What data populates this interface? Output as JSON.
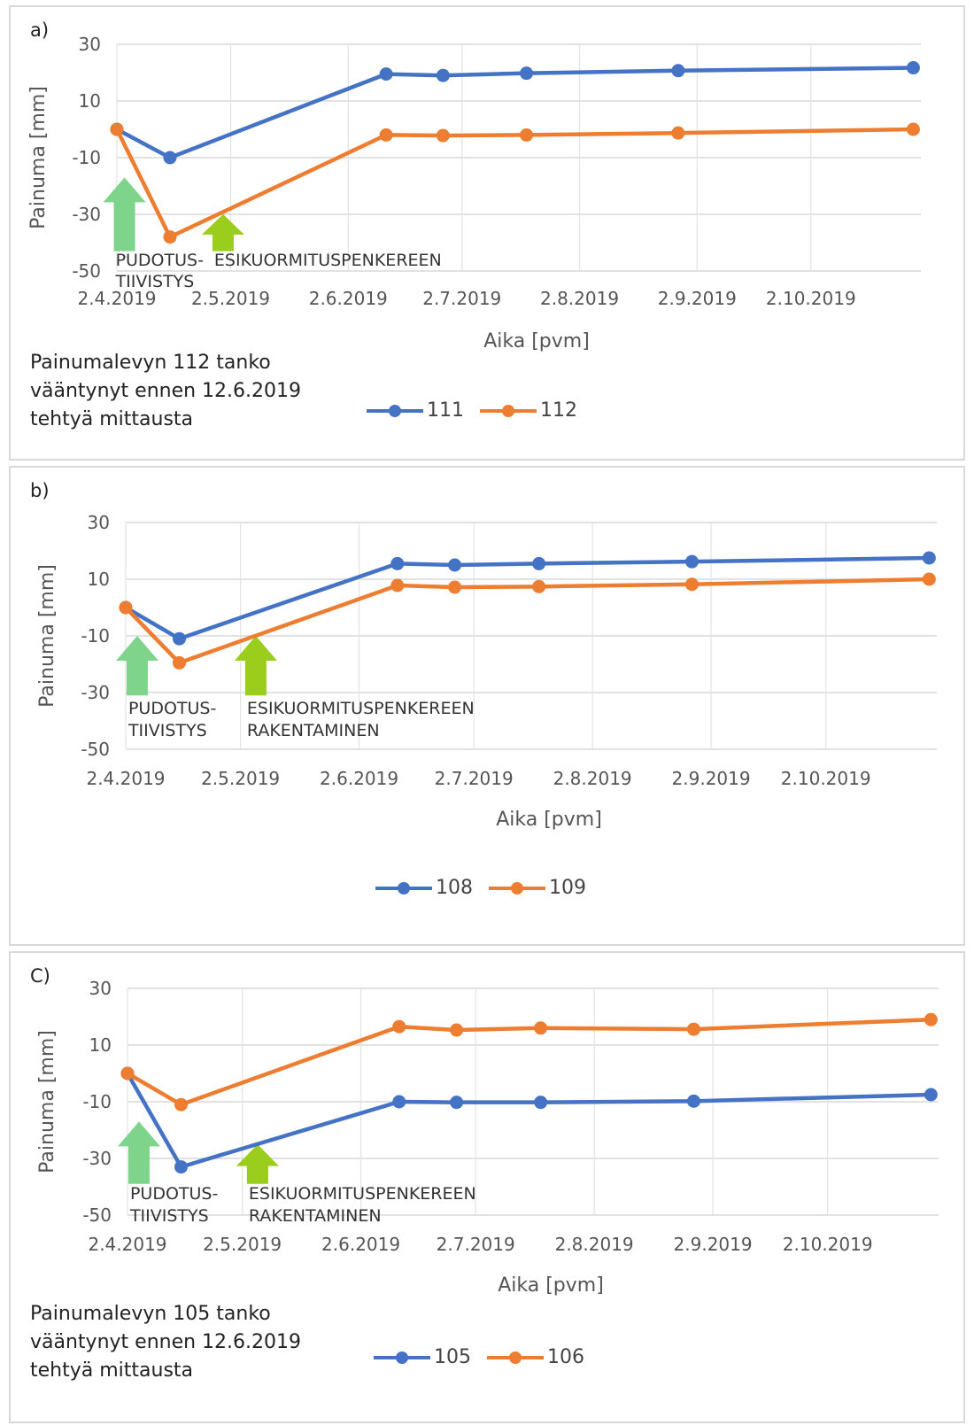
{
  "chart_data": [
    {
      "type": "line",
      "panel_label": "a)",
      "ylabel": "Painuma [mm]",
      "xlabel": "Aika [pvm]",
      "ylim": [
        -50,
        30
      ],
      "yticks": [
        30,
        10,
        -10,
        -30,
        -50
      ],
      "xlim": [
        "2019-04-02",
        "2019-10-31"
      ],
      "xticks": [
        "2.4.2019",
        "2.5.2019",
        "2.6.2019",
        "2.7.2019",
        "2.8.2019",
        "2.9.2019",
        "2.10.2019"
      ],
      "x": [
        "2019-04-02",
        "2019-04-16",
        "2019-06-12",
        "2019-06-27",
        "2019-07-19",
        "2019-08-28",
        "2019-10-29"
      ],
      "series": [
        {
          "name": "111",
          "color": "#4472c4",
          "values": [
            0,
            -10,
            19.5,
            19,
            19.8,
            20.7,
            21.7
          ]
        },
        {
          "name": "112",
          "color": "#ed7d31",
          "values": [
            0,
            -38,
            -2,
            -2.2,
            -2,
            -1.3,
            0
          ]
        }
      ],
      "annotations": [
        {
          "lines": [
            "PUDOTUS-",
            "TIIVISTYS"
          ],
          "arrow_color": "#7fd48c",
          "date": "2019-04-04",
          "arrow_top": -17,
          "arrow_bottom": -43
        },
        {
          "lines": [
            "ESIKUORMITUSPENKEREEN"
          ],
          "arrow_color": "#9acd1c",
          "date": "2019-04-30",
          "arrow_top": -30,
          "arrow_bottom": -43
        }
      ],
      "note": [
        "Painumalevyn 112 tanko",
        "vääntynyt ennen 12.6.2019",
        "tehtyä mittausta"
      ],
      "legend": "bottom"
    },
    {
      "type": "line",
      "panel_label": "b)",
      "ylabel": "Painuma [mm]",
      "xlabel": "Aika [pvm]",
      "ylim": [
        -50,
        30
      ],
      "yticks": [
        30,
        10,
        -10,
        -30,
        -50
      ],
      "xlim": [
        "2019-04-02",
        "2019-10-31"
      ],
      "xticks": [
        "2.4.2019",
        "2.5.2019",
        "2.6.2019",
        "2.7.2019",
        "2.8.2019",
        "2.9.2019",
        "2.10.2019"
      ],
      "x": [
        "2019-04-02",
        "2019-04-16",
        "2019-06-12",
        "2019-06-27",
        "2019-07-19",
        "2019-08-28",
        "2019-10-29"
      ],
      "series": [
        {
          "name": "108",
          "color": "#4472c4",
          "values": [
            0,
            -11,
            15.5,
            15,
            15.5,
            16.2,
            17.5
          ]
        },
        {
          "name": "109",
          "color": "#ed7d31",
          "values": [
            0,
            -19.5,
            7.8,
            7.2,
            7.4,
            8.2,
            10
          ]
        }
      ],
      "annotations": [
        {
          "lines": [
            "PUDOTUS-",
            "TIIVISTYS"
          ],
          "arrow_color": "#7fd48c",
          "date": "2019-04-05",
          "arrow_top": -10,
          "arrow_bottom": -31
        },
        {
          "lines": [
            "ESIKUORMITUSPENKEREEN",
            "RAKENTAMINEN"
          ],
          "arrow_color": "#9acd1c",
          "date": "2019-05-06",
          "arrow_top": -10,
          "arrow_bottom": -31
        }
      ],
      "note": [],
      "legend": "bottom"
    },
    {
      "type": "line",
      "panel_label": "C)",
      "ylabel": "Painuma [mm]",
      "xlabel": "Aika [pvm]",
      "ylim": [
        -50,
        30
      ],
      "yticks": [
        30,
        10,
        -10,
        -30,
        -50
      ],
      "xlim": [
        "2019-04-02",
        "2019-10-31"
      ],
      "xticks": [
        "2.4.2019",
        "2.5.2019",
        "2.6.2019",
        "2.7.2019",
        "2.8.2019",
        "2.9.2019",
        "2.10.2019"
      ],
      "x": [
        "2019-04-02",
        "2019-04-16",
        "2019-06-12",
        "2019-06-27",
        "2019-07-19",
        "2019-08-28",
        "2019-10-29"
      ],
      "series": [
        {
          "name": "105",
          "color": "#4472c4",
          "values": [
            0,
            -33,
            -10,
            -10.2,
            -10.2,
            -9.8,
            -7.5
          ]
        },
        {
          "name": "106",
          "color": "#ed7d31",
          "values": [
            0,
            -11,
            16.5,
            15.3,
            16,
            15.6,
            19
          ]
        }
      ],
      "annotations": [
        {
          "lines": [
            "PUDOTUS-",
            "TIIVISTYS"
          ],
          "arrow_color": "#7fd48c",
          "date": "2019-04-05",
          "arrow_top": -17,
          "arrow_bottom": -39
        },
        {
          "lines": [
            "ESIKUORMITUSPENKEREEN",
            "RAKENTAMINEN"
          ],
          "arrow_color": "#9acd1c",
          "date": "2019-05-06",
          "arrow_top": -25,
          "arrow_bottom": -39
        }
      ],
      "note": [
        "Painumalevyn 105 tanko",
        "vääntynyt ennen 12.6.2019",
        "tehtyä mittausta"
      ],
      "legend": "bottom"
    }
  ]
}
